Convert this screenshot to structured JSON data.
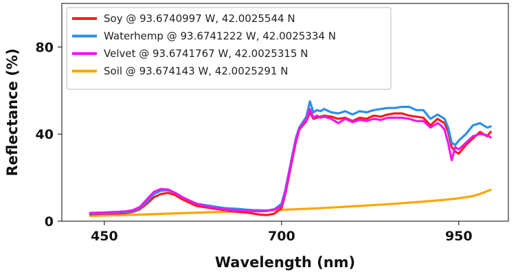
{
  "chart_data": {
    "type": "line",
    "xlabel": "Wavelength (nm)",
    "ylabel": "Reflectance (%)",
    "xlim": [
      390,
      1020
    ],
    "ylim": [
      0,
      100
    ],
    "xticks": [
      450,
      700,
      950
    ],
    "xtick_labels": [
      "450",
      "700",
      "950"
    ],
    "yticks": [
      0,
      40,
      80
    ],
    "ytick_labels": [
      "0",
      "40",
      "80"
    ],
    "grid": false,
    "legend_position": "top-left",
    "series": [
      {
        "name": "Soy @ 93.6740997 W, 42.0025544 N",
        "color": "#ff1a1a",
        "x": [
          430,
          450,
          470,
          480,
          490,
          500,
          510,
          520,
          530,
          540,
          550,
          560,
          570,
          580,
          590,
          600,
          610,
          620,
          630,
          640,
          650,
          660,
          670,
          680,
          690,
          700,
          705,
          710,
          715,
          720,
          725,
          730,
          735,
          740,
          745,
          750,
          755,
          760,
          770,
          780,
          790,
          800,
          810,
          820,
          830,
          840,
          850,
          860,
          870,
          880,
          890,
          900,
          910,
          920,
          925,
          930,
          935,
          940,
          945,
          950,
          960,
          970,
          980,
          990,
          995
        ],
        "y": [
          3.2,
          3.4,
          3.6,
          3.8,
          4.2,
          5.5,
          8.0,
          11.0,
          12.5,
          13.0,
          12.0,
          10.0,
          8.5,
          7.0,
          6.5,
          6.0,
          5.5,
          5.0,
          4.5,
          4.2,
          4.0,
          3.5,
          3.0,
          2.8,
          3.5,
          6.0,
          12.0,
          20.0,
          28.0,
          36.0,
          42.0,
          44.0,
          46.0,
          50.0,
          47.0,
          47.5,
          48.0,
          48.5,
          48.0,
          47.0,
          47.5,
          46.0,
          47.5,
          47.0,
          48.5,
          48.0,
          49.0,
          49.5,
          49.5,
          48.5,
          48.0,
          47.5,
          44.0,
          47.0,
          46.0,
          45.0,
          41.0,
          34.0,
          32.0,
          31.0,
          35.0,
          38.0,
          41.0,
          39.0,
          41.0
        ]
      },
      {
        "name": "Waterhemp @ 93.6741222 W, 42.0025334 N",
        "color": "#2b8fe8",
        "x": [
          430,
          450,
          470,
          480,
          490,
          500,
          510,
          520,
          530,
          540,
          550,
          560,
          570,
          580,
          590,
          600,
          610,
          620,
          630,
          640,
          650,
          660,
          670,
          680,
          690,
          700,
          705,
          710,
          715,
          720,
          725,
          730,
          735,
          740,
          745,
          750,
          755,
          760,
          770,
          780,
          790,
          800,
          810,
          820,
          830,
          840,
          850,
          860,
          870,
          880,
          890,
          900,
          910,
          920,
          925,
          930,
          935,
          940,
          945,
          950,
          960,
          970,
          980,
          990,
          995
        ],
        "y": [
          3.5,
          3.7,
          4.0,
          4.2,
          4.6,
          6.0,
          9.0,
          12.5,
          14.0,
          14.2,
          13.0,
          11.0,
          9.5,
          8.0,
          7.5,
          7.0,
          6.5,
          6.0,
          5.8,
          5.6,
          5.3,
          5.1,
          5.0,
          4.9,
          5.5,
          8.0,
          14.0,
          22.0,
          30.0,
          38.0,
          43.0,
          45.5,
          48.0,
          55.0,
          50.0,
          51.0,
          50.5,
          51.5,
          50.0,
          49.5,
          50.5,
          49.0,
          50.5,
          50.0,
          51.0,
          51.5,
          52.0,
          52.0,
          52.5,
          52.5,
          51.0,
          51.0,
          47.0,
          49.0,
          48.0,
          47.0,
          43.0,
          36.0,
          35.0,
          37.0,
          40.0,
          44.0,
          45.0,
          43.0,
          43.5
        ]
      },
      {
        "name": "Velvet @ 93.6741767 W, 42.0025315 N",
        "color": "#ee17ee",
        "x": [
          430,
          450,
          470,
          480,
          490,
          500,
          510,
          520,
          530,
          540,
          550,
          560,
          570,
          580,
          590,
          600,
          610,
          620,
          630,
          640,
          650,
          660,
          670,
          680,
          690,
          700,
          705,
          710,
          715,
          720,
          725,
          730,
          735,
          740,
          745,
          750,
          755,
          760,
          770,
          780,
          790,
          800,
          810,
          820,
          830,
          840,
          850,
          860,
          870,
          880,
          890,
          900,
          910,
          920,
          925,
          930,
          935,
          940,
          945,
          950,
          960,
          970,
          980,
          990,
          995
        ],
        "y": [
          3.8,
          4.0,
          4.3,
          4.5,
          5.0,
          6.5,
          10.0,
          13.5,
          14.8,
          14.5,
          13.0,
          11.0,
          9.5,
          8.0,
          7.2,
          6.5,
          6.0,
          5.5,
          5.2,
          5.0,
          4.8,
          4.6,
          4.5,
          4.7,
          5.3,
          7.0,
          13.0,
          21.0,
          29.0,
          37.0,
          42.5,
          44.5,
          46.5,
          51.5,
          47.5,
          48.5,
          47.5,
          48.0,
          47.0,
          45.0,
          47.0,
          45.5,
          46.5,
          46.0,
          47.0,
          46.5,
          47.5,
          47.5,
          47.5,
          47.0,
          46.0,
          46.0,
          43.0,
          45.0,
          44.0,
          42.0,
          36.0,
          28.0,
          34.0,
          33.0,
          36.0,
          39.0,
          40.0,
          39.5,
          38.5
        ]
      },
      {
        "name": "Soil @ 93.674143 W, 42.0025291 N",
        "color": "#ffa500",
        "x": [
          430,
          450,
          500,
          550,
          600,
          650,
          700,
          750,
          800,
          850,
          900,
          930,
          950,
          970,
          980,
          990,
          995
        ],
        "y": [
          2.4,
          2.6,
          3.0,
          3.6,
          4.1,
          4.6,
          5.2,
          5.9,
          6.8,
          7.8,
          9.0,
          9.8,
          10.5,
          11.5,
          12.5,
          13.8,
          14.4
        ]
      }
    ]
  }
}
